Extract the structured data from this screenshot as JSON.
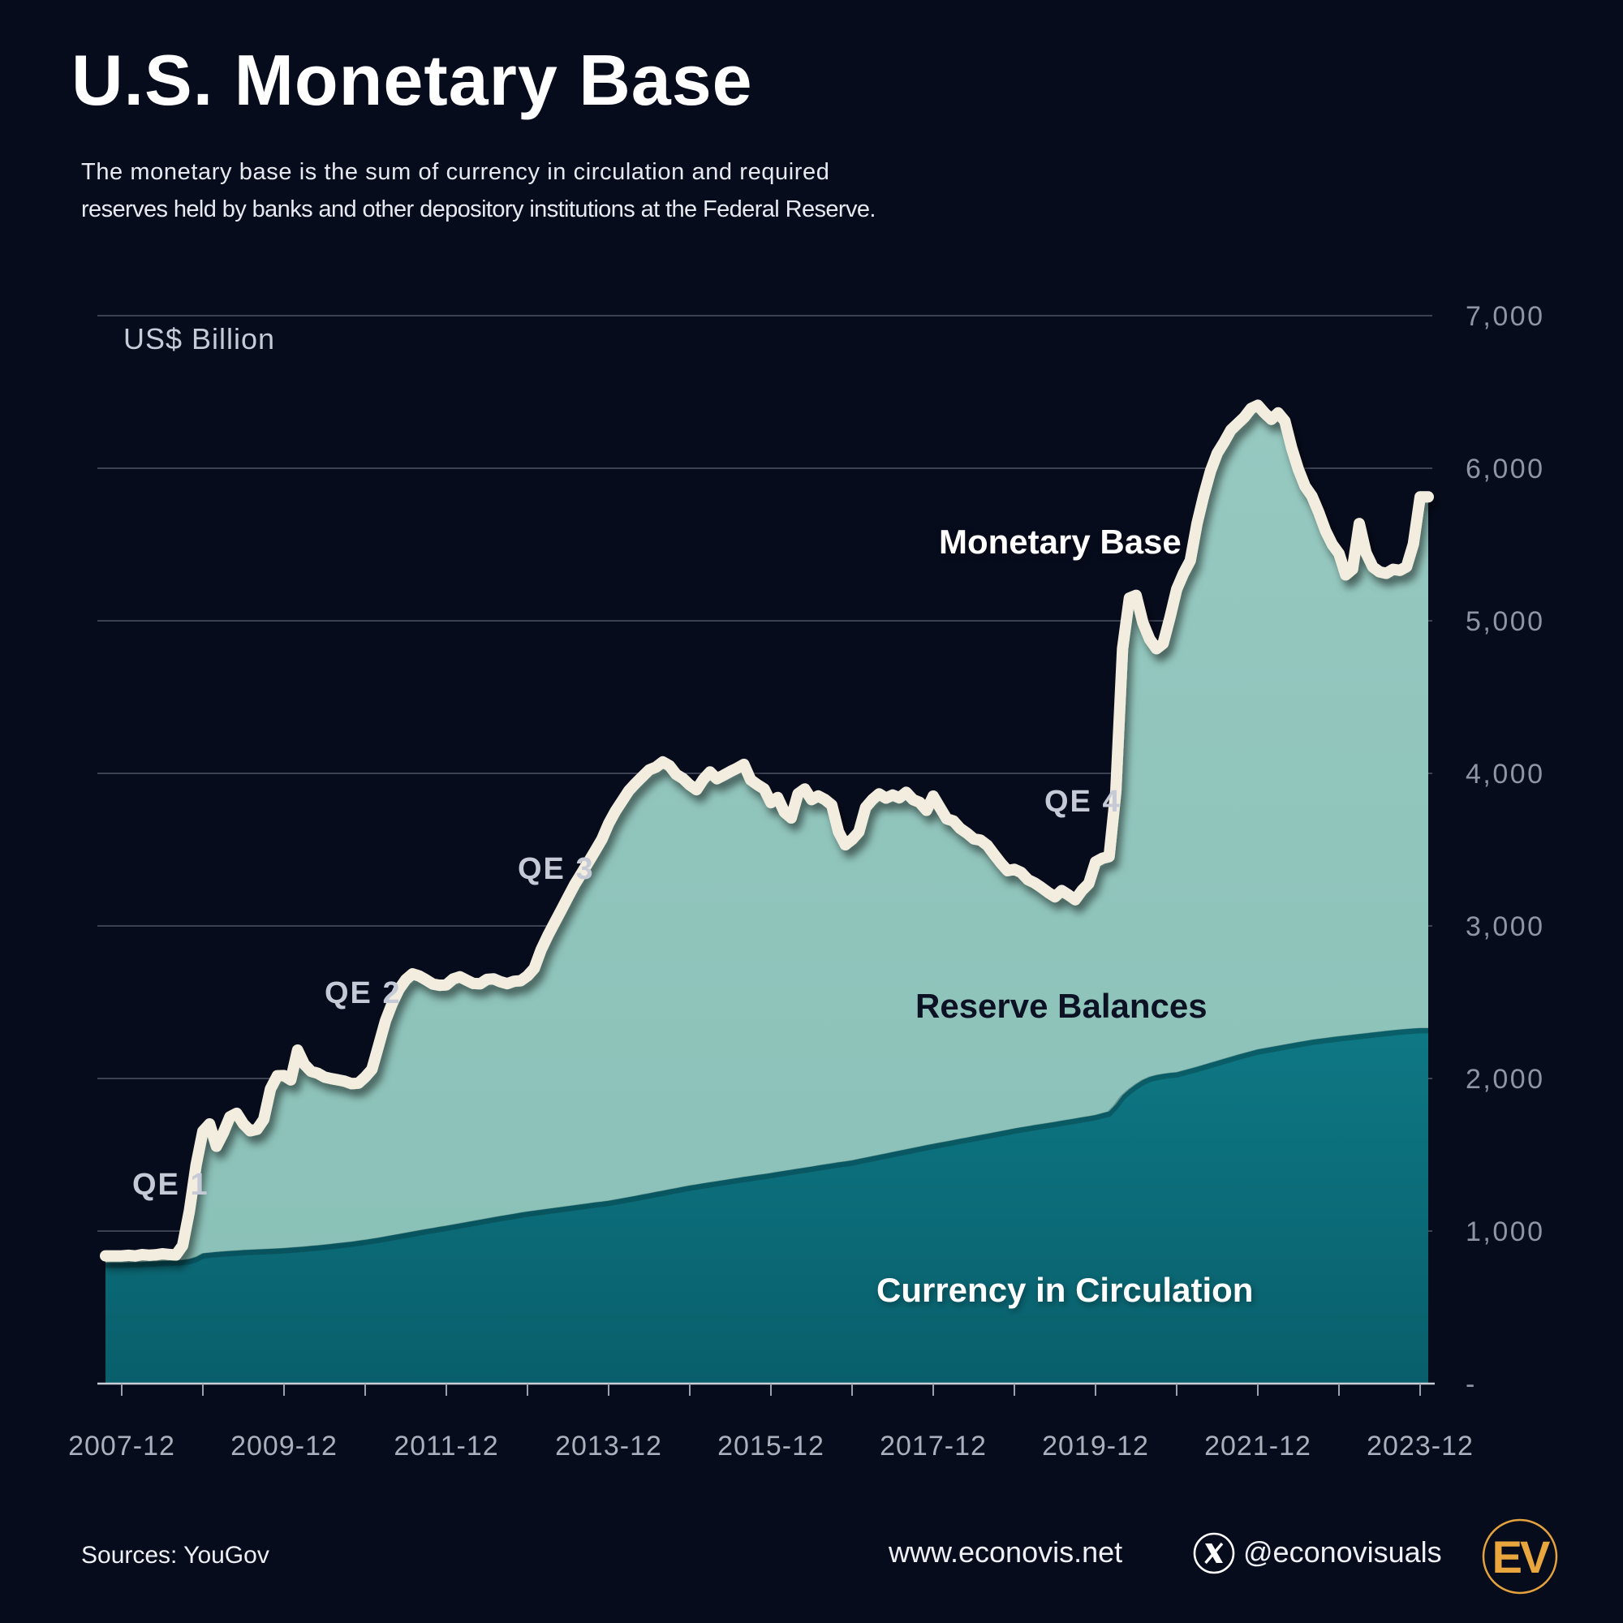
{
  "header": {
    "title": "U.S. Monetary Base",
    "subtitle_line1": "The monetary base is the sum of currency in circulation and required",
    "subtitle_line2": "reserves held by banks and other depository institutions at the Federal Reserve."
  },
  "chart": {
    "unit_label": "US$  Billion",
    "annotations": {
      "qe1": "QE 1",
      "qe2": "QE 2",
      "qe3": "QE 3",
      "qe4": "QE 4",
      "monetary_base": "Monetary Base",
      "reserve_balances": "Reserve Balances",
      "currency_in_circulation": "Currency in Circulation"
    },
    "colors": {
      "background": "#070c1d",
      "reserve_area": "#8fc4bb",
      "currency_area_top": "#0e7884",
      "currency_area_bottom": "#095f6c",
      "line": "#f2edde",
      "gridline": "#3c4254",
      "axis": "#c9cdd6",
      "y_tick_text": "#8f95a4",
      "x_tick_text": "#aab0bc",
      "logo_orange": "#e9a63d"
    }
  },
  "footer": {
    "sources": "Sources: YouGov",
    "website": "www.econovis.net",
    "handle": "@econovisuals",
    "x_icon": "x-social-icon",
    "logo_text": "EV"
  },
  "chart_data": {
    "type": "area",
    "stacked": true,
    "title": "U.S. Monetary Base",
    "unit": "US$ Billion",
    "frequency": "monthly",
    "x_start": "2007-12",
    "x_end": "2023-12",
    "x_tick_labels": [
      "2007-12",
      "2009-12",
      "2011-12",
      "2013-12",
      "2015-12",
      "2017-12",
      "2019-12",
      "2021-12",
      "2023-12"
    ],
    "y_ticks": [
      7000,
      6000,
      5000,
      4000,
      3000,
      2000,
      1000,
      0
    ],
    "y_tick_labels": [
      "7,000",
      "6,000",
      "5,000",
      "4,000",
      "3,000",
      "2,000",
      "1,000",
      "-"
    ],
    "ylim": [
      0,
      7000
    ],
    "grid": true,
    "annotations": [
      "QE 1",
      "QE 2",
      "QE 3",
      "QE 4"
    ],
    "series": [
      {
        "name": "Monetary Base",
        "role": "line-total",
        "values": [
          837,
          841,
          837,
          846,
          842,
          844,
          851,
          847,
          843,
          905,
          1130,
          1435,
          1654,
          1702,
          1556,
          1642,
          1749,
          1772,
          1702,
          1657,
          1667,
          1732,
          1932,
          2018,
          2019,
          1991,
          2186,
          2093,
          2047,
          2034,
          2009,
          1999,
          1991,
          1982,
          1966,
          1969,
          2010,
          2060,
          2219,
          2378,
          2492,
          2585,
          2648,
          2686,
          2672,
          2647,
          2619,
          2611,
          2614,
          2652,
          2667,
          2644,
          2623,
          2621,
          2650,
          2653,
          2634,
          2622,
          2637,
          2641,
          2673,
          2722,
          2843,
          2936,
          3021,
          3105,
          3190,
          3273,
          3345,
          3418,
          3492,
          3568,
          3671,
          3752,
          3820,
          3888,
          3935,
          3979,
          4023,
          4041,
          4075,
          4050,
          3993,
          3966,
          3924,
          3893,
          3961,
          4009,
          3965,
          3988,
          4012,
          4034,
          4059,
          3958,
          3926,
          3898,
          3808,
          3842,
          3746,
          3708,
          3866,
          3898,
          3828,
          3852,
          3828,
          3792,
          3617,
          3532,
          3567,
          3616,
          3777,
          3828,
          3866,
          3838,
          3858,
          3840,
          3876,
          3828,
          3810,
          3758,
          3851,
          3776,
          3702,
          3688,
          3639,
          3608,
          3571,
          3562,
          3528,
          3469,
          3412,
          3362,
          3371,
          3351,
          3303,
          3282,
          3252,
          3219,
          3191,
          3232,
          3203,
          3172,
          3233,
          3278,
          3419,
          3443,
          3454,
          3881,
          4817,
          5149,
          5167,
          4989,
          4880,
          4817,
          4851,
          5022,
          5207,
          5310,
          5394,
          5636,
          5821,
          5982,
          6099,
          6170,
          6250,
          6292,
          6334,
          6392,
          6413,
          6362,
          6321,
          6363,
          6310,
          6133,
          5992,
          5881,
          5817,
          5712,
          5592,
          5501,
          5441,
          5301,
          5339,
          5638,
          5446,
          5353,
          5321,
          5311,
          5338,
          5331,
          5355,
          5504,
          5812
        ]
      },
      {
        "name": "Currency in Circulation",
        "role": "area-bottom",
        "values": [
          792,
          794,
          795,
          797,
          799,
          801,
          803,
          805,
          807,
          810,
          816,
          830,
          853,
          858,
          862,
          866,
          869,
          872,
          875,
          877,
          879,
          881,
          883,
          885,
          888,
          891,
          894,
          898,
          902,
          906,
          910,
          915,
          920,
          925,
          930,
          936,
          942,
          949,
          956,
          964,
          972,
          980,
          988,
          996,
          1004,
          1012,
          1019,
          1027,
          1034,
          1042,
          1050,
          1058,
          1066,
          1074,
          1082,
          1090,
          1098,
          1105,
          1112,
          1120,
          1127,
          1133,
          1139,
          1145,
          1151,
          1157,
          1163,
          1169,
          1175,
          1181,
          1187,
          1192,
          1198,
          1206,
          1214,
          1222,
          1230,
          1239,
          1247,
          1256,
          1264,
          1273,
          1281,
          1290,
          1298,
          1305,
          1312,
          1319,
          1326,
          1333,
          1340,
          1347,
          1354,
          1360,
          1367,
          1373,
          1380,
          1387,
          1394,
          1401,
          1408,
          1415,
          1422,
          1429,
          1436,
          1443,
          1450,
          1456,
          1463,
          1472,
          1481,
          1490,
          1499,
          1508,
          1517,
          1526,
          1535,
          1544,
          1553,
          1562,
          1571,
          1579,
          1587,
          1596,
          1604,
          1612,
          1621,
          1629,
          1637,
          1646,
          1654,
          1663,
          1672,
          1679,
          1686,
          1694,
          1701,
          1708,
          1715,
          1723,
          1730,
          1737,
          1745,
          1752,
          1760,
          1772,
          1784,
          1830,
          1890,
          1930,
          1962,
          1990,
          2010,
          2022,
          2030,
          2036,
          2040,
          2052,
          2064,
          2076,
          2089,
          2102,
          2115,
          2128,
          2141,
          2154,
          2166,
          2178,
          2190,
          2198,
          2206,
          2214,
          2222,
          2230,
          2238,
          2245,
          2253,
          2259,
          2265,
          2271,
          2276,
          2281,
          2286,
          2291,
          2296,
          2301,
          2306,
          2311,
          2316,
          2320,
          2324,
          2327,
          2330
        ]
      },
      {
        "name": "Reserve Balances",
        "role": "area-top-band",
        "note": "stacked band = Monetary Base minus Currency in Circulation"
      }
    ]
  }
}
